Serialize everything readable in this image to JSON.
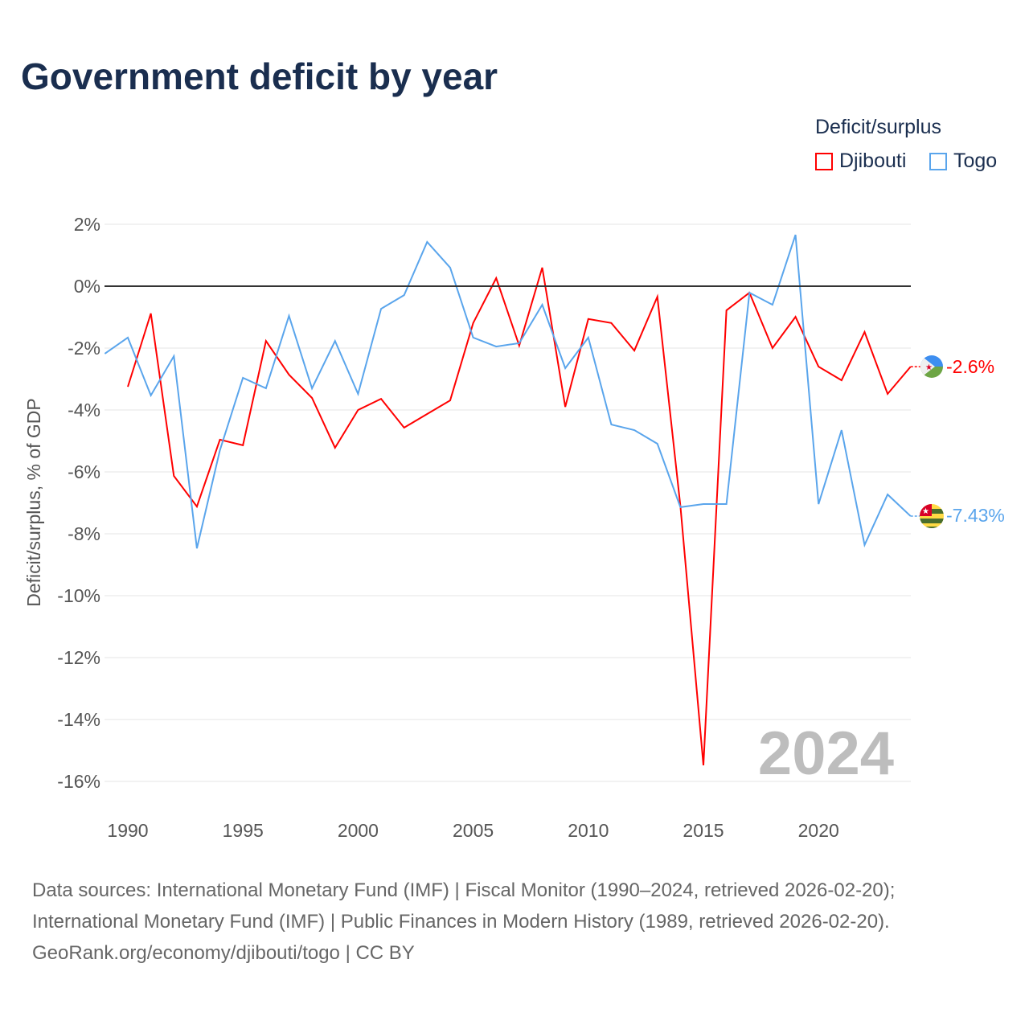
{
  "title": "Government deficit by year",
  "legend": {
    "title": "Deficit/surplus",
    "items": [
      {
        "label": "Djibouti",
        "color": "#ff0000"
      },
      {
        "label": "Togo",
        "color": "#5aa5ec"
      }
    ]
  },
  "source_lines": [
    "Data sources: International Monetary Fund (IMF) | Fiscal Monitor (1990–2024, retrieved 2026-02-20);",
    "International Monetary Fund (IMF) | Public Finances in Modern History (1989, retrieved 2026-02-20).",
    "GeoRank.org/economy/djibouti/togo | CC BY"
  ],
  "chart_data": {
    "type": "line",
    "title": "Government deficit by year",
    "xlabel": "",
    "ylabel": "Deficit/surplus, % of GDP",
    "xlim": [
      1989,
      2024
    ],
    "ylim": [
      -17,
      2.5
    ],
    "xticks": [
      1990,
      1995,
      2000,
      2005,
      2010,
      2015,
      2020
    ],
    "yticks": [
      2,
      0,
      -2,
      -4,
      -6,
      -8,
      -10,
      -12,
      -14,
      -16
    ],
    "ytick_labels": [
      "2%",
      "0%",
      "-2%",
      "-4%",
      "-6%",
      "-8%",
      "-10%",
      "-12%",
      "-14%",
      "-16%"
    ],
    "watermark_year": "2024",
    "grid": true,
    "legend_position": "top-right",
    "series": [
      {
        "name": "Djibouti",
        "color": "#ff0000",
        "end_label": "-2.6%",
        "x": [
          1990,
          1991,
          1992,
          1993,
          1994,
          1995,
          1996,
          1997,
          1998,
          1999,
          2000,
          2001,
          2002,
          2003,
          2004,
          2005,
          2006,
          2007,
          2008,
          2009,
          2010,
          2011,
          2012,
          2013,
          2014,
          2015,
          2016,
          2017,
          2018,
          2019,
          2020,
          2021,
          2022,
          2023,
          2024
        ],
        "y": [
          -3.25,
          -0.88,
          -6.13,
          -7.12,
          -4.96,
          -5.14,
          -1.77,
          -2.86,
          -3.61,
          -5.22,
          -4.0,
          -3.64,
          -4.57,
          -4.13,
          -3.69,
          -1.19,
          0.26,
          -1.92,
          0.6,
          -3.9,
          -1.06,
          -1.19,
          -2.08,
          -0.34,
          -7.1,
          -15.48,
          -0.78,
          -0.21,
          -2.0,
          -0.99,
          -2.6,
          -3.04,
          -1.48,
          -3.48,
          -2.6
        ]
      },
      {
        "name": "Togo",
        "color": "#5aa5ec",
        "end_label": "-7.43%",
        "x": [
          1989,
          1990,
          1991,
          1992,
          1993,
          1994,
          1995,
          1996,
          1997,
          1998,
          1999,
          2000,
          2001,
          2002,
          2003,
          2004,
          2005,
          2006,
          2007,
          2008,
          2009,
          2010,
          2011,
          2012,
          2013,
          2014,
          2015,
          2016,
          2017,
          2018,
          2019,
          2020,
          2021,
          2022,
          2023,
          2024
        ],
        "y": [
          -2.18,
          -1.66,
          -3.53,
          -2.26,
          -8.47,
          -5.3,
          -2.96,
          -3.3,
          -0.96,
          -3.3,
          -1.77,
          -3.48,
          -0.73,
          -0.29,
          1.43,
          0.6,
          -1.66,
          -1.95,
          -1.84,
          -0.6,
          -2.65,
          -1.66,
          -4.47,
          -4.65,
          -5.09,
          -7.14,
          -7.04,
          -7.04,
          -0.21,
          -0.6,
          1.66,
          -7.04,
          -4.65,
          -8.36,
          -6.73,
          -7.43
        ]
      }
    ]
  }
}
